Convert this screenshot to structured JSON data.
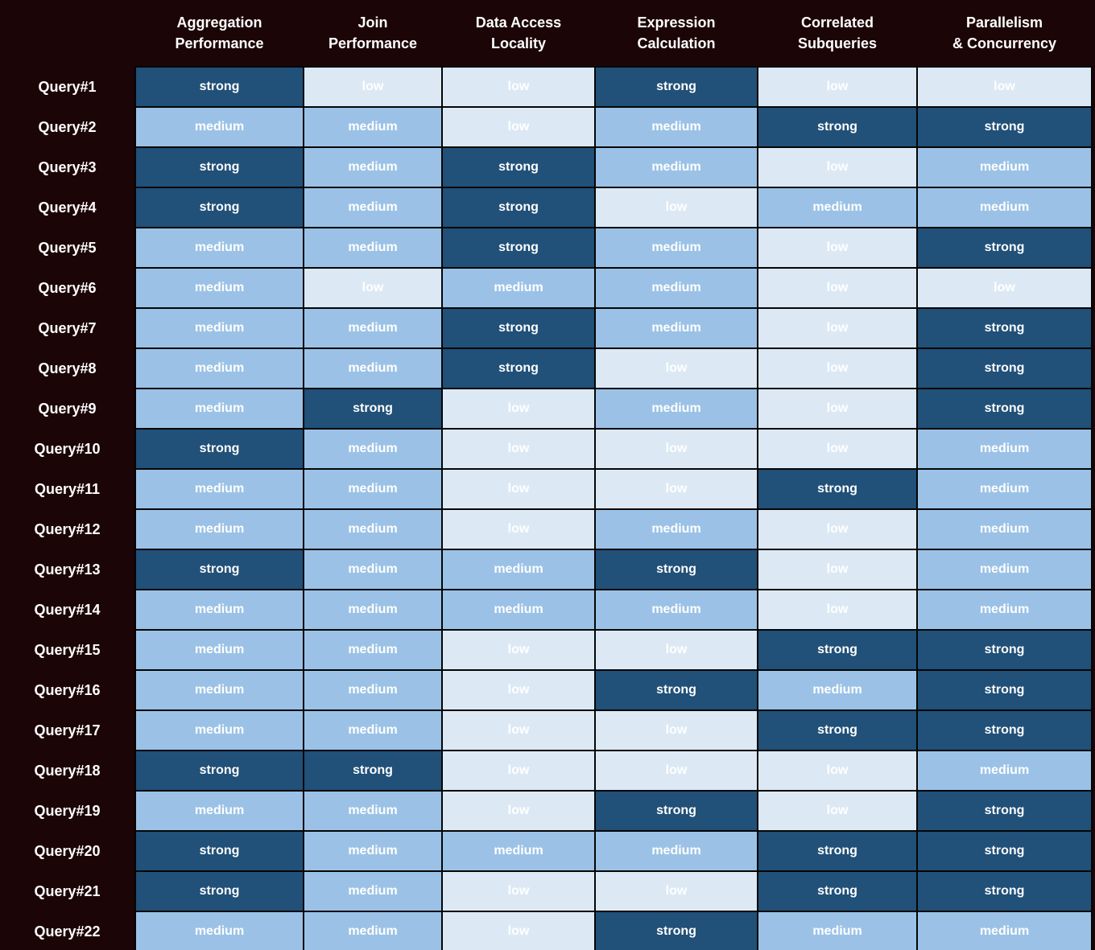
{
  "table": {
    "columns": [
      {
        "line1": "Aggregation",
        "line2": "Performance"
      },
      {
        "line1": "Join",
        "line2": "Performance"
      },
      {
        "line1": "Data Access",
        "line2": "Locality"
      },
      {
        "line1": "Expression",
        "line2": "Calculation"
      },
      {
        "line1": "Correlated",
        "line2": "Subqueries"
      },
      {
        "line1": "Parallelism",
        "line2": "& Concurrency"
      }
    ],
    "rows": [
      {
        "label": "Query#1",
        "values": [
          "strong",
          "low",
          "low",
          "strong",
          "low",
          "low"
        ]
      },
      {
        "label": "Query#2",
        "values": [
          "medium",
          "medium",
          "low",
          "medium",
          "strong",
          "strong"
        ]
      },
      {
        "label": "Query#3",
        "values": [
          "strong",
          "medium",
          "strong",
          "medium",
          "low",
          "medium"
        ]
      },
      {
        "label": "Query#4",
        "values": [
          "strong",
          "medium",
          "strong",
          "low",
          "medium",
          "medium"
        ]
      },
      {
        "label": "Query#5",
        "values": [
          "medium",
          "medium",
          "strong",
          "medium",
          "low",
          "strong"
        ]
      },
      {
        "label": "Query#6",
        "values": [
          "medium",
          "low",
          "medium",
          "medium",
          "low",
          "low"
        ]
      },
      {
        "label": "Query#7",
        "values": [
          "medium",
          "medium",
          "strong",
          "medium",
          "low",
          "strong"
        ]
      },
      {
        "label": "Query#8",
        "values": [
          "medium",
          "medium",
          "strong",
          "low",
          "low",
          "strong"
        ]
      },
      {
        "label": "Query#9",
        "values": [
          "medium",
          "strong",
          "low",
          "medium",
          "low",
          "strong"
        ]
      },
      {
        "label": "Query#10",
        "values": [
          "strong",
          "medium",
          "low",
          "low",
          "low",
          "medium"
        ]
      },
      {
        "label": "Query#11",
        "values": [
          "medium",
          "medium",
          "low",
          "low",
          "strong",
          "medium"
        ]
      },
      {
        "label": "Query#12",
        "values": [
          "medium",
          "medium",
          "low",
          "medium",
          "low",
          "medium"
        ]
      },
      {
        "label": "Query#13",
        "values": [
          "strong",
          "medium",
          "medium",
          "strong",
          "low",
          "medium"
        ]
      },
      {
        "label": "Query#14",
        "values": [
          "medium",
          "medium",
          "medium",
          "medium",
          "low",
          "medium"
        ]
      },
      {
        "label": "Query#15",
        "values": [
          "medium",
          "medium",
          "low",
          "low",
          "strong",
          "strong"
        ]
      },
      {
        "label": "Query#16",
        "values": [
          "medium",
          "medium",
          "low",
          "strong",
          "medium",
          "strong"
        ]
      },
      {
        "label": "Query#17",
        "values": [
          "medium",
          "medium",
          "low",
          "low",
          "strong",
          "strong"
        ]
      },
      {
        "label": "Query#18",
        "values": [
          "strong",
          "strong",
          "low",
          "low",
          "low",
          "medium"
        ]
      },
      {
        "label": "Query#19",
        "values": [
          "medium",
          "medium",
          "low",
          "strong",
          "low",
          "strong"
        ]
      },
      {
        "label": "Query#20",
        "values": [
          "strong",
          "medium",
          "medium",
          "medium",
          "strong",
          "strong"
        ]
      },
      {
        "label": "Query#21",
        "values": [
          "strong",
          "medium",
          "low",
          "low",
          "strong",
          "strong"
        ]
      },
      {
        "label": "Query#22",
        "values": [
          "medium",
          "medium",
          "low",
          "strong",
          "medium",
          "medium"
        ]
      }
    ]
  },
  "colors": {
    "background": "#1C0507",
    "grid": "#050505",
    "text": "#FFFFFF",
    "strong": "#215078",
    "medium": "#9BC2E6",
    "low": "#DCE9F5"
  },
  "chart_data": {
    "type": "heatmap",
    "title": "",
    "x_categories": [
      "Aggregation Performance",
      "Join Performance",
      "Data Access Locality",
      "Expression Calculation",
      "Correlated Subqueries",
      "Parallelism & Concurrency"
    ],
    "y_categories": [
      "Query#1",
      "Query#2",
      "Query#3",
      "Query#4",
      "Query#5",
      "Query#6",
      "Query#7",
      "Query#8",
      "Query#9",
      "Query#10",
      "Query#11",
      "Query#12",
      "Query#13",
      "Query#14",
      "Query#15",
      "Query#16",
      "Query#17",
      "Query#18",
      "Query#19",
      "Query#20",
      "Query#21",
      "Query#22"
    ],
    "values": [
      [
        "strong",
        "low",
        "low",
        "strong",
        "low",
        "low"
      ],
      [
        "medium",
        "medium",
        "low",
        "medium",
        "strong",
        "strong"
      ],
      [
        "strong",
        "medium",
        "strong",
        "medium",
        "low",
        "medium"
      ],
      [
        "strong",
        "medium",
        "strong",
        "low",
        "medium",
        "medium"
      ],
      [
        "medium",
        "medium",
        "strong",
        "medium",
        "low",
        "strong"
      ],
      [
        "medium",
        "low",
        "medium",
        "medium",
        "low",
        "low"
      ],
      [
        "medium",
        "medium",
        "strong",
        "medium",
        "low",
        "strong"
      ],
      [
        "medium",
        "medium",
        "strong",
        "low",
        "low",
        "strong"
      ],
      [
        "medium",
        "strong",
        "low",
        "medium",
        "low",
        "strong"
      ],
      [
        "strong",
        "medium",
        "low",
        "low",
        "low",
        "medium"
      ],
      [
        "medium",
        "medium",
        "low",
        "low",
        "strong",
        "medium"
      ],
      [
        "medium",
        "medium",
        "low",
        "medium",
        "low",
        "medium"
      ],
      [
        "strong",
        "medium",
        "medium",
        "strong",
        "low",
        "medium"
      ],
      [
        "medium",
        "medium",
        "medium",
        "medium",
        "low",
        "medium"
      ],
      [
        "medium",
        "medium",
        "low",
        "low",
        "strong",
        "strong"
      ],
      [
        "medium",
        "medium",
        "low",
        "strong",
        "medium",
        "strong"
      ],
      [
        "medium",
        "medium",
        "low",
        "low",
        "strong",
        "strong"
      ],
      [
        "strong",
        "strong",
        "low",
        "low",
        "low",
        "medium"
      ],
      [
        "medium",
        "medium",
        "low",
        "strong",
        "low",
        "strong"
      ],
      [
        "strong",
        "medium",
        "medium",
        "medium",
        "strong",
        "strong"
      ],
      [
        "strong",
        "medium",
        "low",
        "low",
        "strong",
        "strong"
      ],
      [
        "medium",
        "medium",
        "low",
        "strong",
        "medium",
        "medium"
      ]
    ],
    "level_colors": {
      "strong": "#215078",
      "medium": "#9BC2E6",
      "low": "#DCE9F5"
    },
    "grid": true,
    "legend_position": "none"
  }
}
